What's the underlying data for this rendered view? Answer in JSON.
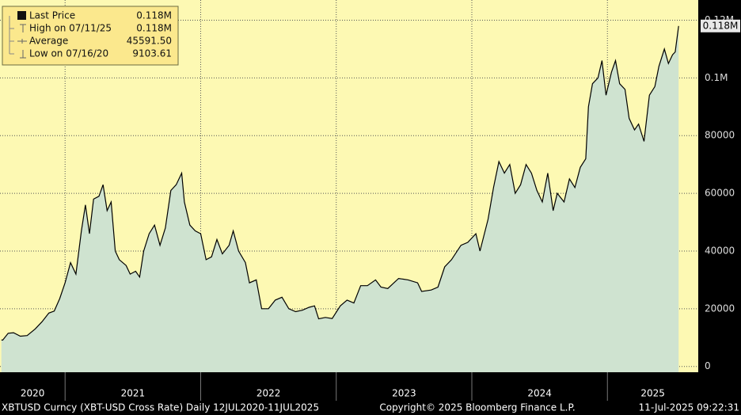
{
  "chart_data": {
    "type": "area",
    "legend": {
      "rows": [
        {
          "label": "Last Price",
          "value": "0.118M"
        },
        {
          "label": "High on 07/11/25",
          "value": "0.118M"
        },
        {
          "label": "Average",
          "value": "45591.50"
        },
        {
          "label": "Low on 07/16/20",
          "value": "9103.61"
        }
      ]
    },
    "last_price_tag": "0.118M",
    "footer": {
      "left": "XBTUSD Curncy (XBT-USD Cross Rate)  Daily 12JUL2020-11JUL2025",
      "center": "Copyright© 2025 Bloomberg Finance L.P.",
      "right": "11-Jul-2025 09:22:31"
    },
    "xlim": [
      2020.52,
      2025.67
    ],
    "xticks": [
      2020,
      2021,
      2022,
      2023,
      2024,
      2025
    ],
    "ylim": [
      -2000,
      127000
    ],
    "yticks": [
      0,
      20000,
      40000,
      60000,
      80000,
      {
        "value": 100000,
        "label": "0.1M"
      },
      {
        "value": 120000,
        "label": "0.12M"
      }
    ],
    "grid": true,
    "x": [
      2020.53,
      2020.54,
      2020.58,
      2020.62,
      2020.67,
      2020.72,
      2020.78,
      2020.83,
      2020.88,
      2020.92,
      2020.96,
      2021.0,
      2021.04,
      2021.08,
      2021.12,
      2021.15,
      2021.18,
      2021.21,
      2021.25,
      2021.28,
      2021.31,
      2021.34,
      2021.37,
      2021.4,
      2021.45,
      2021.48,
      2021.52,
      2021.55,
      2021.58,
      2021.62,
      2021.66,
      2021.7,
      2021.74,
      2021.78,
      2021.82,
      2021.86,
      2021.88,
      2021.92,
      2021.96,
      2022.0,
      2022.04,
      2022.08,
      2022.12,
      2022.16,
      2022.21,
      2022.24,
      2022.28,
      2022.33,
      2022.36,
      2022.41,
      2022.45,
      2022.5,
      2022.55,
      2022.6,
      2022.65,
      2022.7,
      2022.75,
      2022.8,
      2022.84,
      2022.87,
      2022.92,
      2022.97,
      2023.03,
      2023.08,
      2023.13,
      2023.18,
      2023.23,
      2023.29,
      2023.33,
      2023.38,
      2023.46,
      2023.53,
      2023.6,
      2023.63,
      2023.7,
      2023.75,
      2023.8,
      2023.85,
      2023.92,
      2023.97,
      2024.03,
      2024.06,
      2024.12,
      2024.16,
      2024.2,
      2024.24,
      2024.28,
      2024.32,
      2024.36,
      2024.4,
      2024.44,
      2024.48,
      2024.52,
      2024.56,
      2024.6,
      2024.63,
      2024.68,
      2024.72,
      2024.76,
      2024.8,
      2024.84,
      2024.86,
      2024.89,
      2024.93,
      2024.96,
      2024.99,
      2025.03,
      2025.06,
      2025.09,
      2025.13,
      2025.16,
      2025.2,
      2025.23,
      2025.27,
      2025.31,
      2025.35,
      2025.38,
      2025.42,
      2025.45,
      2025.48,
      2025.5,
      2025.525
    ],
    "series": [
      {
        "name": "Last Price",
        "color": "#000000",
        "fill": "#cfe3d0",
        "values": [
          9200,
          9104,
          11500,
          11700,
          10500,
          10700,
          13000,
          15500,
          18500,
          19200,
          23500,
          29000,
          36000,
          32000,
          47000,
          56000,
          46000,
          58000,
          59000,
          63000,
          54000,
          57000,
          40000,
          37000,
          35000,
          32000,
          33000,
          31000,
          40000,
          46000,
          49000,
          42000,
          48000,
          61000,
          63000,
          67000,
          57000,
          49000,
          47000,
          46000,
          37000,
          38000,
          44000,
          39000,
          42000,
          47000,
          40000,
          36000,
          29000,
          30000,
          20000,
          20000,
          23000,
          24000,
          20000,
          19000,
          19500,
          20500,
          21000,
          16500,
          17000,
          16600,
          21000,
          23000,
          22000,
          28000,
          28000,
          30000,
          27500,
          27000,
          30500,
          30000,
          29000,
          26000,
          26500,
          27500,
          34500,
          37000,
          42000,
          43000,
          46000,
          40000,
          51000,
          62000,
          71000,
          67000,
          70000,
          60000,
          63000,
          70000,
          67000,
          61000,
          57000,
          67000,
          54000,
          60000,
          57000,
          65000,
          62000,
          69000,
          72000,
          90000,
          98000,
          100000,
          106000,
          94000,
          102000,
          106000,
          98000,
          96000,
          86000,
          82000,
          84000,
          78000,
          94000,
          97000,
          104000,
          110000,
          105000,
          108000,
          109000,
          118000
        ]
      }
    ]
  }
}
